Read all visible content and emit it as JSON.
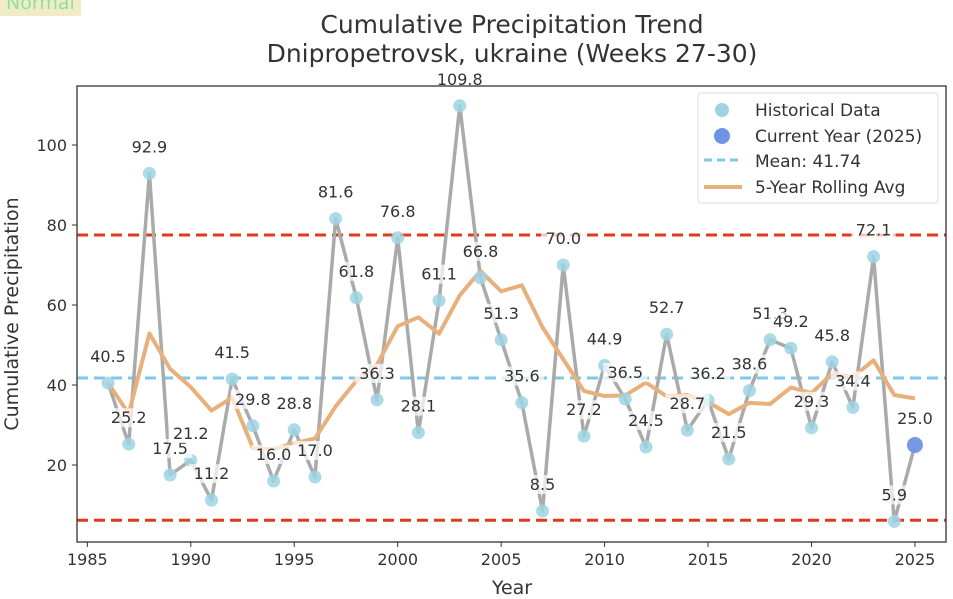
{
  "badge": "Normal",
  "chart_data": {
    "type": "line",
    "title": "Cumulative Precipitation Trend",
    "subtitle": "Dnipropetrovsk, ukraine (Weeks 27-30)",
    "xlabel": "Year",
    "ylabel": "Cumulative Precipitation",
    "xlim": [
      1984.5,
      2026.5
    ],
    "ylim": [
      0.75,
      114.75
    ],
    "xticks": [
      1985,
      1990,
      1995,
      2000,
      2005,
      2010,
      2015,
      2020,
      2025
    ],
    "yticks": [
      20,
      40,
      60,
      80,
      100
    ],
    "grid": false,
    "legend_position": "top-right",
    "legend": [
      "Historical Data",
      "Current Year (2025)",
      "Mean: 41.74",
      "5-Year Rolling Avg"
    ],
    "x": [
      1986,
      1987,
      1988,
      1989,
      1990,
      1991,
      1992,
      1993,
      1994,
      1995,
      1996,
      1997,
      1998,
      1999,
      2000,
      2001,
      2002,
      2003,
      2004,
      2005,
      2006,
      2007,
      2008,
      2009,
      2010,
      2011,
      2012,
      2013,
      2014,
      2015,
      2016,
      2017,
      2018,
      2019,
      2020,
      2021,
      2022,
      2023,
      2024,
      2025
    ],
    "values": [
      40.5,
      25.2,
      92.9,
      17.5,
      21.2,
      11.2,
      41.5,
      29.8,
      16.0,
      28.8,
      17.0,
      81.6,
      61.8,
      36.3,
      76.8,
      28.1,
      61.1,
      109.8,
      66.8,
      51.3,
      35.6,
      8.5,
      70.0,
      27.2,
      44.9,
      36.5,
      24.5,
      52.7,
      28.7,
      36.2,
      21.5,
      38.6,
      51.3,
      49.2,
      29.3,
      45.8,
      34.4,
      72.1,
      5.9,
      25.0
    ],
    "labels": [
      "40.5",
      "25.2",
      "92.9",
      "17.5",
      "21.2",
      "11.2",
      "41.5",
      "29.8",
      "16.0",
      "28.8",
      "17.0",
      "81.6",
      "61.8",
      "36.3",
      "76.8",
      "28.1",
      "61.1",
      "109.8",
      "66.8",
      "51.3",
      "35.6",
      "8.5",
      "70.0",
      "27.2",
      "44.9",
      "36.5",
      "24.5",
      "52.7",
      "28.7",
      "36.2",
      "21.5",
      "38.6",
      "51.3",
      "49.2",
      "29.3",
      "45.8",
      "34.4",
      "72.1",
      "5.9",
      "25.0"
    ],
    "rolling_avg": [
      40.5,
      32.85,
      52.87,
      44.03,
      39.46,
      33.6,
      36.86,
      24.24,
      23.94,
      25.46,
      26.62,
      34.64,
      41.04,
      45.1,
      54.7,
      56.92,
      52.82,
      62.42,
      68.52,
      63.42,
      64.92,
      54.4,
      46.44,
      38.52,
      37.24,
      37.42,
      40.62,
      37.16,
      37.46,
      35.72,
      32.72,
      35.54,
      35.26,
      39.36,
      37.98,
      42.84,
      42.0,
      46.16,
      37.5,
      36.64
    ],
    "mean": 41.74,
    "thresholds": [
      77.5,
      6.2
    ],
    "current_year": 2025,
    "colors": {
      "historical": "#9fd3e3",
      "current": "#6f94e6",
      "mean": "#7ec8e8",
      "rolling": "#e8b07a",
      "threshold": "#e03a1e",
      "line": "#aaaaaa"
    }
  }
}
